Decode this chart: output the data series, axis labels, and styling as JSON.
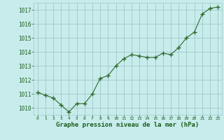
{
  "x": [
    0,
    1,
    2,
    3,
    4,
    5,
    6,
    7,
    8,
    9,
    10,
    11,
    12,
    13,
    14,
    15,
    16,
    17,
    18,
    19,
    20,
    21,
    22,
    23
  ],
  "y": [
    1011.1,
    1010.9,
    1010.7,
    1010.2,
    1009.7,
    1010.3,
    1010.3,
    1011.0,
    1012.1,
    1012.3,
    1013.0,
    1013.5,
    1013.8,
    1013.7,
    1013.6,
    1013.6,
    1013.9,
    1013.8,
    1014.3,
    1015.0,
    1015.4,
    1016.7,
    1017.1,
    1017.2
  ],
  "line_color": "#2d6a2d",
  "marker": "+",
  "marker_size": 4,
  "bg_color": "#c8ecec",
  "grid_color": "#a0c8c8",
  "xlabel": "Graphe pression niveau de la mer (hPa)",
  "xlabel_color": "#1a5c1a",
  "tick_color": "#1a5c1a",
  "ylim": [
    1009.5,
    1017.5
  ],
  "yticks": [
    1010,
    1011,
    1012,
    1013,
    1014,
    1015,
    1016,
    1017
  ],
  "xlim": [
    -0.5,
    23.5
  ],
  "xticks": [
    0,
    1,
    2,
    3,
    4,
    5,
    6,
    7,
    8,
    9,
    10,
    11,
    12,
    13,
    14,
    15,
    16,
    17,
    18,
    19,
    20,
    21,
    22,
    23
  ]
}
